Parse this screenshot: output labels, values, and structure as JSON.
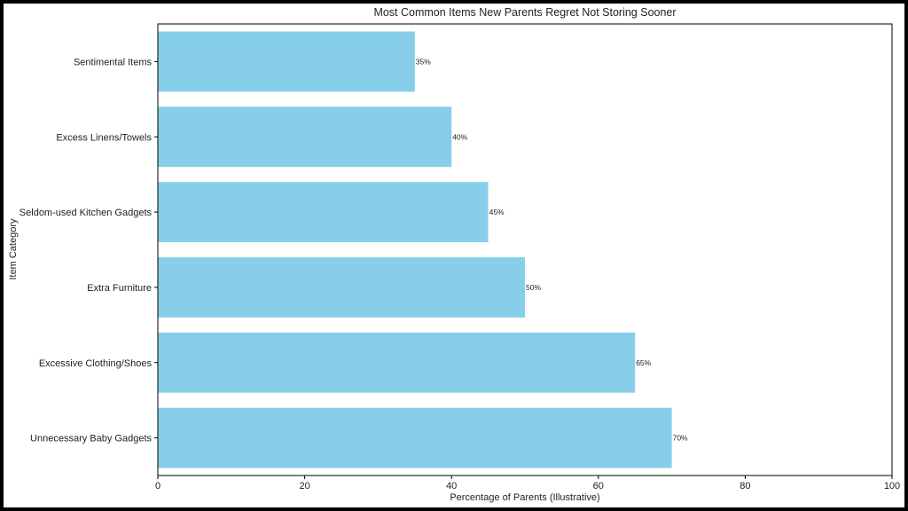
{
  "chart_data": {
    "type": "bar",
    "orientation": "horizontal",
    "title": "Most Common Items New Parents Regret Not Storing Sooner",
    "xlabel": "Percentage of Parents (Illustrative)",
    "ylabel": "Item Category",
    "xlim": [
      0,
      100
    ],
    "xticks": [
      0,
      20,
      40,
      60,
      80,
      100
    ],
    "bar_color": "#87CEEB",
    "grid": false,
    "categories": [
      "Unnecessary Baby Gadgets",
      "Excessive Clothing/Shoes",
      "Extra Furniture",
      "Seldom-used Kitchen Gadgets",
      "Excess Linens/Towels",
      "Sentimental Items"
    ],
    "values": [
      70,
      65,
      50,
      45,
      40,
      35
    ],
    "data_labels": [
      "70%",
      "65%",
      "50%",
      "45%",
      "40%",
      "35%"
    ]
  }
}
